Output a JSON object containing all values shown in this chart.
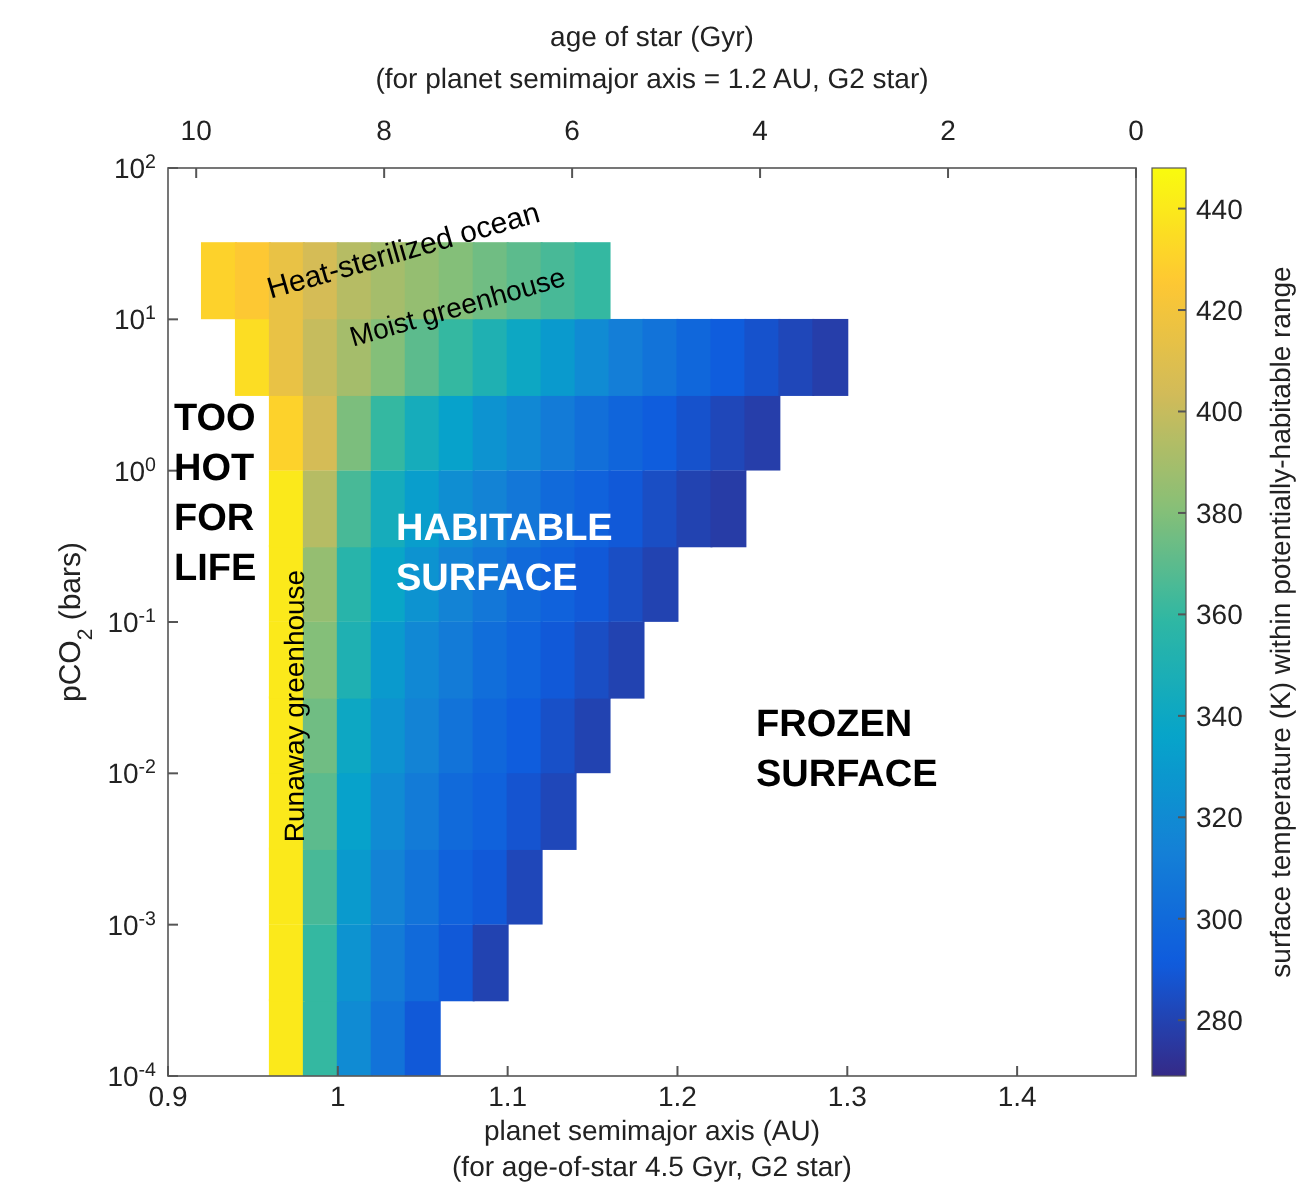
{
  "chart_data": {
    "type": "scatter",
    "marker": "square",
    "xlabel": "planet semimajor axis (AU)\n(for age-of-star 4.5 Gyr, G2 star)",
    "x2label": "age of star (Gyr)\n(for planet semimajor axis = 1.2 AU, G2 star)",
    "ylabel": "pCO$_{2}$ (bars)",
    "clabel": "surface temperature (K) within potentially-habitable range",
    "xlim": [
      0.9,
      1.47
    ],
    "xticks": [
      0.9,
      1,
      1.1,
      1.2,
      1.3,
      1.4
    ],
    "x2lim": [
      10.3,
      0
    ],
    "x2ticks": [
      10,
      8,
      6,
      4,
      2,
      0
    ],
    "log": "y",
    "ylim": [
      0.0001,
      100
    ],
    "yticks": [
      {
        "value": 0.0001,
        "label": "10$^{-4}$"
      },
      {
        "value": 0.001,
        "label": "10$^{-3}$"
      },
      {
        "value": 0.01,
        "label": "10$^{-2}$"
      },
      {
        "value": 0.1,
        "label": "10$^{-1}$"
      },
      {
        "value": 1,
        "label": "10$^{0}$"
      },
      {
        "value": 10,
        "label": "10$^{1}$"
      },
      {
        "value": 100,
        "label": "10$^{2}$"
      }
    ],
    "clim": [
      269,
      448
    ],
    "cticks": [
      280,
      300,
      320,
      340,
      360,
      380,
      400,
      420,
      440
    ],
    "grid": false,
    "x": [
      0.97,
      0.99,
      1.01,
      1.03,
      1.05,
      0.97,
      0.99,
      1.01,
      1.03,
      1.05,
      1.07,
      1.09,
      0.97,
      0.99,
      1.01,
      1.03,
      1.05,
      1.07,
      1.09,
      1.11,
      0.97,
      0.99,
      1.01,
      1.03,
      1.05,
      1.07,
      1.09,
      1.11,
      1.13,
      0.97,
      0.99,
      1.01,
      1.03,
      1.05,
      1.07,
      1.09,
      1.11,
      1.13,
      1.15,
      0.97,
      0.99,
      1.01,
      1.03,
      1.05,
      1.07,
      1.09,
      1.11,
      1.13,
      1.15,
      1.17,
      0.97,
      0.99,
      1.01,
      1.03,
      1.05,
      1.07,
      1.09,
      1.11,
      1.13,
      1.15,
      1.17,
      1.19,
      0.97,
      0.99,
      1.01,
      1.03,
      1.05,
      1.07,
      1.09,
      1.11,
      1.13,
      1.15,
      1.17,
      1.19,
      1.21,
      1.23,
      0.97,
      0.99,
      1.01,
      1.03,
      1.05,
      1.07,
      1.09,
      1.11,
      1.13,
      1.15,
      1.17,
      1.19,
      1.21,
      1.23,
      1.25,
      0.95,
      0.97,
      0.99,
      1.01,
      1.03,
      1.05,
      1.07,
      1.09,
      1.11,
      1.13,
      1.15,
      1.17,
      1.19,
      1.21,
      1.23,
      1.25,
      1.27,
      1.29,
      0.93,
      0.95,
      0.97,
      0.99,
      1.01,
      1.03,
      1.05,
      1.07,
      1.09,
      1.11,
      1.13,
      1.15
    ],
    "values": [
      0.00018,
      0.00018,
      0.00018,
      0.00018,
      0.00018,
      0.00056,
      0.00056,
      0.00056,
      0.00056,
      0.00056,
      0.00056,
      0.00056,
      0.0018,
      0.0018,
      0.0018,
      0.0018,
      0.0018,
      0.0018,
      0.0018,
      0.0018,
      0.0056,
      0.0056,
      0.0056,
      0.0056,
      0.0056,
      0.0056,
      0.0056,
      0.0056,
      0.0056,
      0.018,
      0.018,
      0.018,
      0.018,
      0.018,
      0.018,
      0.018,
      0.018,
      0.018,
      0.018,
      0.056,
      0.056,
      0.056,
      0.056,
      0.056,
      0.056,
      0.056,
      0.056,
      0.056,
      0.056,
      0.056,
      0.18,
      0.18,
      0.18,
      0.18,
      0.18,
      0.18,
      0.18,
      0.18,
      0.18,
      0.18,
      0.18,
      0.18,
      0.56,
      0.56,
      0.56,
      0.56,
      0.56,
      0.56,
      0.56,
      0.56,
      0.56,
      0.56,
      0.56,
      0.56,
      0.56,
      0.56,
      1.8,
      1.8,
      1.8,
      1.8,
      1.8,
      1.8,
      1.8,
      1.8,
      1.8,
      1.8,
      1.8,
      1.8,
      1.8,
      1.8,
      1.8,
      5.6,
      5.6,
      5.6,
      5.6,
      5.6,
      5.6,
      5.6,
      5.6,
      5.6,
      5.6,
      5.6,
      5.6,
      5.6,
      5.6,
      5.6,
      5.6,
      5.6,
      5.6,
      18,
      18,
      18,
      18,
      18,
      18,
      18,
      18,
      18,
      18,
      18,
      18
    ],
    "cvalues": [
      440,
      360,
      320,
      305,
      290,
      440,
      360,
      325,
      310,
      300,
      290,
      280,
      440,
      365,
      330,
      315,
      305,
      295,
      290,
      282,
      440,
      370,
      335,
      320,
      310,
      300,
      295,
      288,
      282,
      440,
      375,
      340,
      325,
      315,
      305,
      298,
      292,
      286,
      280,
      440,
      380,
      350,
      330,
      318,
      310,
      302,
      296,
      290,
      285,
      280,
      440,
      385,
      355,
      338,
      325,
      315,
      308,
      300,
      295,
      290,
      285,
      280,
      440,
      395,
      365,
      345,
      332,
      322,
      315,
      308,
      300,
      295,
      290,
      285,
      280,
      277,
      430,
      405,
      378,
      360,
      345,
      335,
      325,
      318,
      310,
      303,
      297,
      292,
      287,
      282,
      278,
      435,
      415,
      400,
      390,
      380,
      370,
      360,
      350,
      340,
      330,
      320,
      312,
      305,
      298,
      292,
      287,
      282,
      278,
      430,
      425,
      415,
      405,
      395,
      390,
      385,
      380,
      375,
      370,
      365,
      360
    ],
    "annotations": [
      "Heat-sterilized ocean",
      "Moist greenhouse",
      "TOO\nHOT\nFOR\nLIFE",
      "HABITABLE\nSURFACE",
      "FROZEN\nSURFACE",
      "Runaway greenhouse"
    ]
  }
}
